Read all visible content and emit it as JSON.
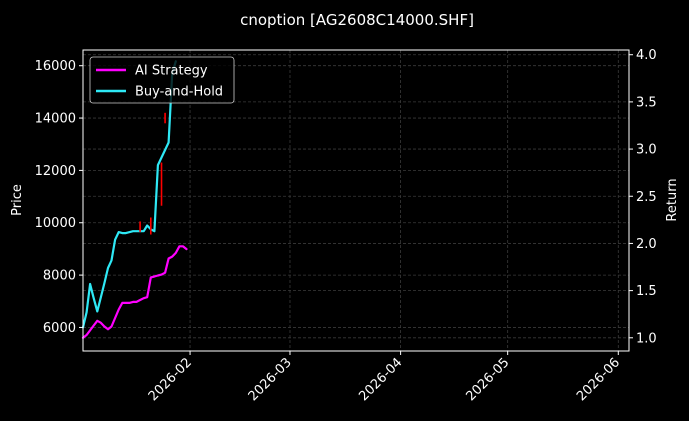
{
  "chart_data": {
    "type": "line",
    "title": "cnoption [AG2608C14000.SHF]",
    "ylabel": "Price",
    "y2label": "Return",
    "xlim": [
      "2026-01-02",
      "2026-06-04"
    ],
    "ylim": [
      5100,
      16600
    ],
    "y2lim": [
      0.86,
      4.05
    ],
    "xticks": [
      "2026-02",
      "2026-03",
      "2026-04",
      "2026-05",
      "2026-06"
    ],
    "xtick_dates": [
      "2026-02-01",
      "2026-03-01",
      "2026-04-01",
      "2026-05-01",
      "2026-06-01"
    ],
    "yticks": [
      6000,
      8000,
      10000,
      12000,
      14000,
      16000
    ],
    "y2ticks": [
      "1.0",
      "1.5",
      "2.0",
      "2.5",
      "3.0",
      "3.5",
      "4.0"
    ],
    "grid": true,
    "legend_position": "top-left",
    "series": [
      {
        "name": "AI Strategy",
        "axis": "right",
        "color": "#ff00ff",
        "x": [
          "2026-01-02",
          "2026-01-03",
          "2026-01-05",
          "2026-01-06",
          "2026-01-07",
          "2026-01-08",
          "2026-01-09",
          "2026-01-10",
          "2026-01-12",
          "2026-01-13",
          "2026-01-14",
          "2026-01-15",
          "2026-01-16",
          "2026-01-17",
          "2026-01-18",
          "2026-01-19",
          "2026-01-20",
          "2026-01-21",
          "2026-01-22",
          "2026-01-23",
          "2026-01-24",
          "2026-01-25",
          "2026-01-26",
          "2026-01-27",
          "2026-01-28",
          "2026-01-29",
          "2026-01-30",
          "2026-01-31"
        ],
        "y": [
          1.0,
          1.03,
          1.13,
          1.18,
          1.16,
          1.12,
          1.09,
          1.12,
          1.3,
          1.37,
          1.37,
          1.37,
          1.38,
          1.38,
          1.4,
          1.42,
          1.43,
          1.64,
          1.65,
          1.66,
          1.67,
          1.69,
          1.84,
          1.86,
          1.9,
          1.97,
          1.97,
          1.94
        ]
      },
      {
        "name": "Buy-and-Hold",
        "axis": "right",
        "color": "#2ee8f5",
        "x": [
          "2026-01-02",
          "2026-01-03",
          "2026-01-04",
          "2026-01-05",
          "2026-01-06",
          "2026-01-08",
          "2026-01-09",
          "2026-01-10",
          "2026-01-11",
          "2026-01-12",
          "2026-01-13",
          "2026-01-14",
          "2026-01-16",
          "2026-01-19",
          "2026-01-20",
          "2026-01-21",
          "2026-01-22",
          "2026-01-23",
          "2026-01-26",
          "2026-01-27",
          "2026-01-28"
        ],
        "y": [
          1.11,
          1.27,
          1.57,
          1.42,
          1.28,
          1.58,
          1.74,
          1.82,
          2.04,
          2.12,
          2.11,
          2.11,
          2.13,
          2.13,
          2.19,
          2.15,
          2.13,
          2.83,
          3.07,
          3.8,
          3.93
        ]
      },
      {
        "name": "",
        "axis": "left",
        "color": "#ff0000",
        "type": "candles",
        "x": [
          "2026-01-18",
          "2026-01-21",
          "2026-01-24",
          "2026-01-25"
        ],
        "low": [
          9650,
          9550,
          10650,
          13800
        ],
        "high": [
          10050,
          10200,
          12300,
          14200
        ]
      }
    ]
  }
}
